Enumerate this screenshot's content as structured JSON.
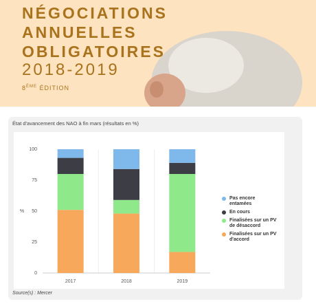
{
  "header": {
    "title_lines": [
      "NÉGOCIATIONS",
      "ANNUELLES",
      "OBLIGATOIRES"
    ],
    "years": "2018-2019",
    "edition_number": "8",
    "edition_suffix": "ÈME",
    "edition_label": "ÉDITION"
  },
  "chart_data": {
    "type": "stacked-bar",
    "title": "État d'avancement des NAO à fin mars (résultats en %)",
    "y_label": "%",
    "categories": [
      "2017",
      "2018",
      "2019"
    ],
    "series": [
      {
        "name": "Finalisées sur un PV d'accord",
        "color": "#f7a85a",
        "values": [
          51,
          48,
          17
        ]
      },
      {
        "name": "Finalisées sur un PV de désaccord",
        "color": "#8fe88a",
        "values": [
          29,
          11,
          63
        ]
      },
      {
        "name": "En cours",
        "color": "#3d3d45",
        "values": [
          13,
          25,
          9
        ]
      },
      {
        "name": "Pas encore entamées",
        "color": "#7fb8ea",
        "values": [
          7,
          16,
          11
        ]
      }
    ],
    "ylim": [
      0,
      100
    ],
    "yticks": [
      0,
      25,
      50,
      75,
      100
    ],
    "grid": false,
    "source": "Source(s) : Mercer"
  }
}
